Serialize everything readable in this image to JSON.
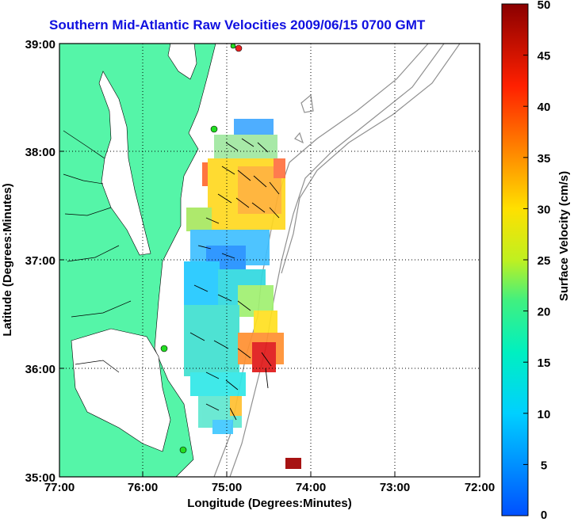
{
  "title": "Southern Mid-Atlantic Raw Velocities 2009/06/15 0700 GMT",
  "xlabel": "Longitude (Degrees:Minutes)",
  "ylabel": "Latitude (Degrees:Minutes)",
  "x_ticks": [
    "77:00",
    "76:00",
    "75:00",
    "74:00",
    "73:00",
    "72:00"
  ],
  "y_ticks": [
    "39:00",
    "38:00",
    "37:00",
    "36:00",
    "35:00"
  ],
  "colorbar": {
    "label": "Surface Velocity (cm/s)",
    "ticks": [
      "50",
      "45",
      "40",
      "35",
      "30",
      "25",
      "20",
      "15",
      "10",
      "5",
      "0"
    ]
  },
  "colors": {
    "land": "#55f5a8",
    "ocean": "#ffffff",
    "title": "#1010e0",
    "station": "#22dd22",
    "station_alt": "#ee2222",
    "bathymetry": "#909090"
  },
  "chart_data": {
    "type": "heatmap",
    "x_range_deg_west": [
      77,
      72
    ],
    "y_range_deg_north": [
      35,
      39
    ],
    "value_range_cm_s": [
      0,
      50
    ],
    "grid": true
  }
}
